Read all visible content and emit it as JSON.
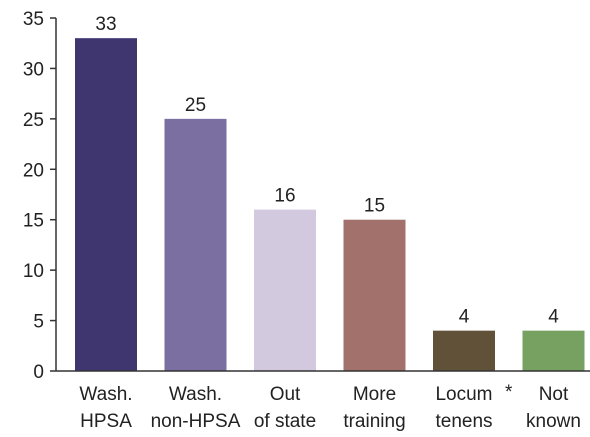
{
  "chart_data": {
    "type": "bar",
    "title": "",
    "xlabel": "",
    "ylabel": "",
    "ylim": [
      0,
      35
    ],
    "yticks": [
      0,
      5,
      10,
      15,
      20,
      25,
      30,
      35
    ],
    "grid": false,
    "legend": "none",
    "categories": [
      [
        "Wash.",
        "HPSA"
      ],
      [
        "Wash.",
        "non-HPSA"
      ],
      [
        "Out",
        "of state"
      ],
      [
        "More",
        "training"
      ],
      [
        "Locum",
        "tenens"
      ],
      [
        "Not",
        "known"
      ]
    ],
    "values": [
      33,
      25,
      16,
      15,
      4,
      4
    ],
    "colors": [
      "#3f356f",
      "#7b6ea1",
      "#d3c9df",
      "#a2716c",
      "#615138",
      "#77a161"
    ],
    "annotations": [
      {
        "text": "*",
        "between_categories": [
          4,
          5
        ]
      }
    ]
  }
}
